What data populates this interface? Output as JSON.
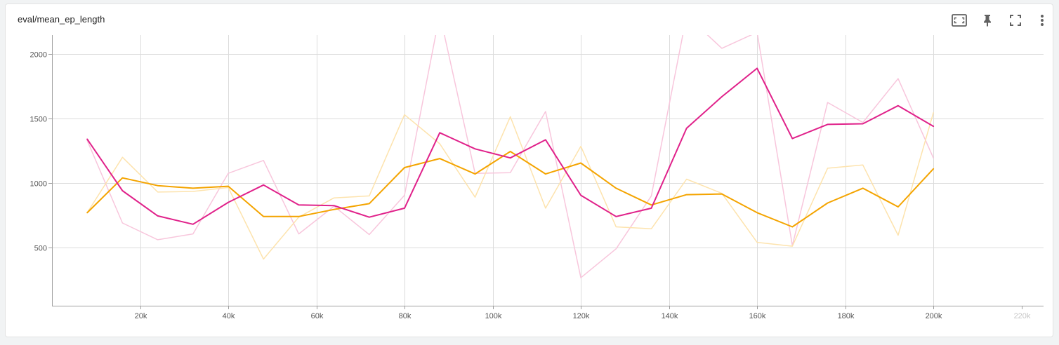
{
  "card": {
    "title": "eval/mean_ep_length"
  },
  "toolbar": {
    "buttons": [
      {
        "name": "fit-domain-button",
        "icon": "fit-domain-icon"
      },
      {
        "name": "pin-button",
        "icon": "pin-icon"
      },
      {
        "name": "fullscreen-button",
        "icon": "fullscreen-icon"
      },
      {
        "name": "more-options-button",
        "icon": "more-vert-icon"
      }
    ]
  },
  "chart_data": {
    "type": "line",
    "title": "eval/mean_ep_length",
    "xlabel": "",
    "ylabel": "",
    "xlim": [
      0,
      225000
    ],
    "ylim": [
      48,
      2148
    ],
    "grid": true,
    "x_ticks": [
      {
        "value": 20000,
        "label": "20k"
      },
      {
        "value": 40000,
        "label": "40k"
      },
      {
        "value": 60000,
        "label": "60k"
      },
      {
        "value": 80000,
        "label": "80k"
      },
      {
        "value": 100000,
        "label": "100k"
      },
      {
        "value": 120000,
        "label": "120k"
      },
      {
        "value": 140000,
        "label": "140k"
      },
      {
        "value": 160000,
        "label": "160k"
      },
      {
        "value": 180000,
        "label": "180k"
      },
      {
        "value": 200000,
        "label": "200k"
      },
      {
        "value": 220000,
        "label": "220k",
        "faded": true
      }
    ],
    "y_ticks": [
      {
        "value": 500,
        "label": "500"
      },
      {
        "value": 1000,
        "label": "1000"
      },
      {
        "value": 1500,
        "label": "1500"
      },
      {
        "value": 2000,
        "label": "2000"
      }
    ],
    "x": [
      8000,
      16000,
      24000,
      32000,
      40000,
      48000,
      56000,
      64000,
      72000,
      80000,
      88000,
      96000,
      104000,
      112000,
      120000,
      128000,
      136000,
      144000,
      152000,
      160000,
      168000,
      176000,
      184000,
      192000,
      200000
    ],
    "series": [
      {
        "color": "#f8c6dc",
        "width": 1.5,
        "values": [
          1330,
          690,
          560,
          605,
          1075,
          1175,
          605,
          820,
          600,
          905,
          2310,
          1075,
          1080,
          1555,
          265,
          490,
          900,
          2300,
          2045,
          2170,
          515,
          1625,
          1470,
          1810,
          1195
        ]
      },
      {
        "color": "#fde3ad",
        "width": 1.5,
        "values": [
          770,
          1200,
          930,
          935,
          965,
          410,
          735,
          885,
          900,
          1530,
          1305,
          890,
          1515,
          805,
          1285,
          660,
          645,
          1030,
          920,
          540,
          510,
          1115,
          1140,
          595,
          1545
        ]
      },
      {
        "color": "#f4a400",
        "width": 2,
        "values": [
          770,
          1040,
          980,
          960,
          975,
          740,
          740,
          795,
          840,
          1120,
          1190,
          1070,
          1245,
          1070,
          1155,
          960,
          830,
          910,
          915,
          770,
          660,
          845,
          960,
          815,
          1110
        ]
      },
      {
        "color": "#e0218a",
        "width": 2,
        "values": [
          1340,
          940,
          745,
          680,
          850,
          985,
          830,
          825,
          735,
          805,
          1390,
          1265,
          1195,
          1335,
          905,
          740,
          805,
          1425,
          1670,
          1890,
          1345,
          1455,
          1460,
          1600,
          1440
        ]
      }
    ]
  }
}
